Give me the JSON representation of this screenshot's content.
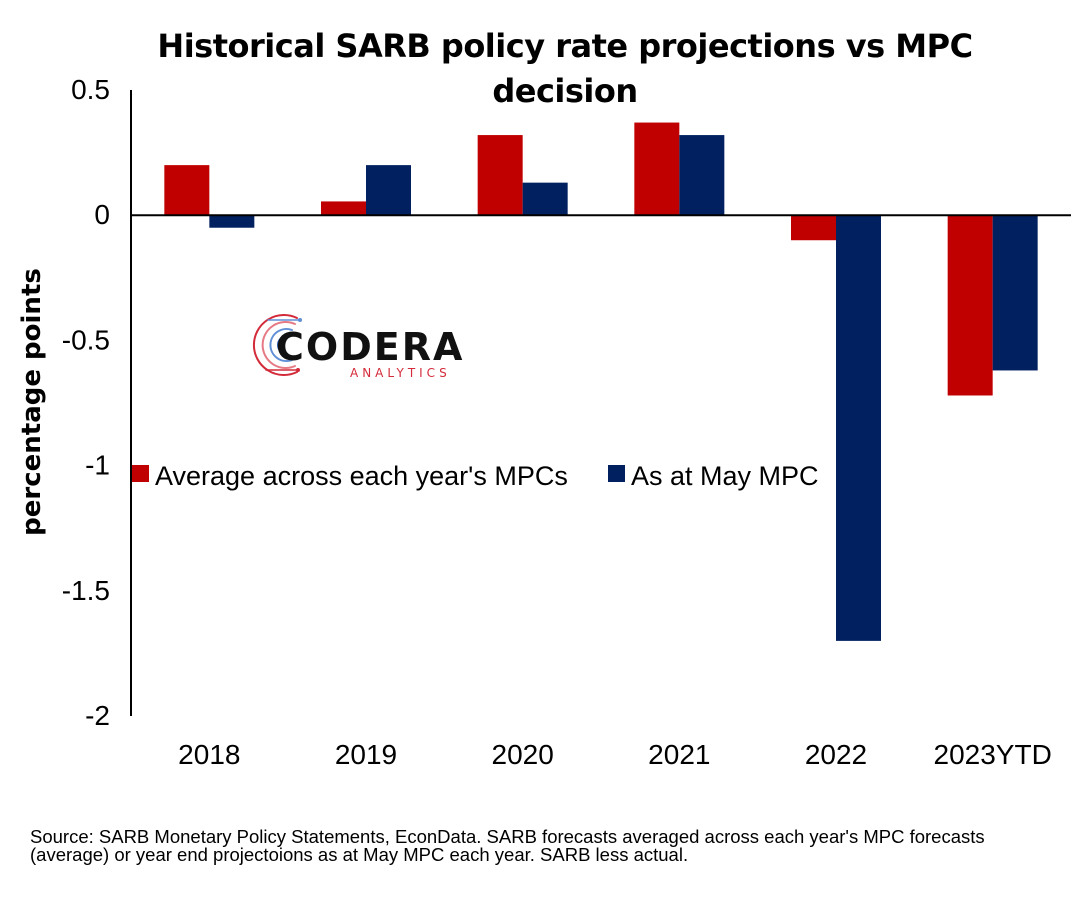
{
  "chart_data": {
    "type": "bar",
    "title": "Historical SARB policy rate projections vs MPC decision",
    "xlabel": "",
    "ylabel": "percentage points",
    "categories": [
      "2018",
      "2019",
      "2020",
      "2021",
      "2022",
      "2023YTD"
    ],
    "series": [
      {
        "name": "Average across each year's MPCs",
        "color": "#c00000",
        "values": [
          0.2,
          0.055,
          0.32,
          0.37,
          -0.1,
          -0.72
        ]
      },
      {
        "name": "As at May MPC",
        "color": "#002060",
        "values": [
          -0.05,
          0.2,
          0.13,
          0.32,
          -1.7,
          -0.62
        ]
      }
    ],
    "ylim": [
      -2,
      0.5
    ],
    "yticks": [
      "0.5",
      "0",
      "-0.5",
      "-1",
      "-1.5",
      "-2"
    ],
    "ytick_values": [
      0.5,
      0,
      -0.5,
      -1,
      -1.5,
      -2
    ],
    "grid": false,
    "legend_position": "center-left"
  },
  "logo": {
    "word": "CODERA",
    "sub": "ANALYTICS"
  },
  "source_note": "Source: SARB Monetary Policy Statements, EconData. SARB forecasts averaged across each year's MPC forecasts (average) or year end projectoions as at May MPC each year. SARB less actual."
}
